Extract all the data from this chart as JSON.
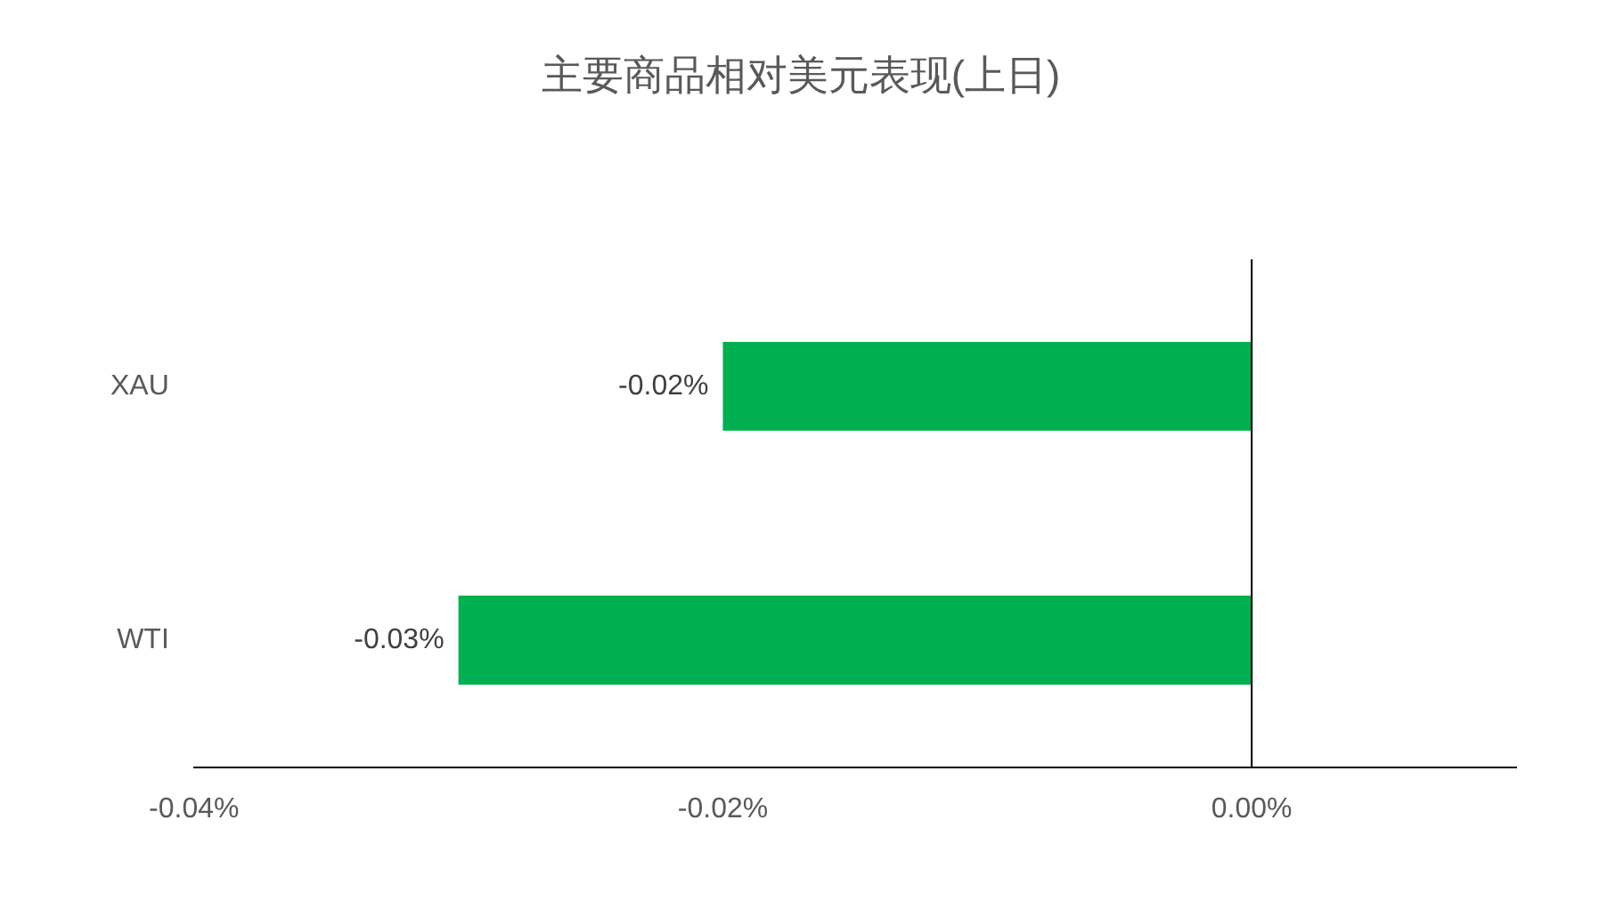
{
  "chart_data": {
    "type": "bar",
    "title": "主要商品相对美元表现(上日)",
    "orientation": "horizontal",
    "categories": [
      "XAU",
      "WTI"
    ],
    "series": [
      {
        "color": "#00b050",
        "values": [
          -0.02,
          -0.03
        ],
        "value_labels": [
          "-0.02%",
          "-0.03%"
        ]
      }
    ],
    "xlim": [
      -0.04,
      0.01
    ],
    "xticks": [
      {
        "value": -0.04,
        "label": "-0.04%"
      },
      {
        "value": -0.02,
        "label": "-0.02%"
      },
      {
        "value": 0,
        "label": "0.00%"
      }
    ],
    "ref_lines": [
      {
        "axis": "x",
        "value": 0,
        "color": "#000000"
      }
    ],
    "legend": false
  }
}
